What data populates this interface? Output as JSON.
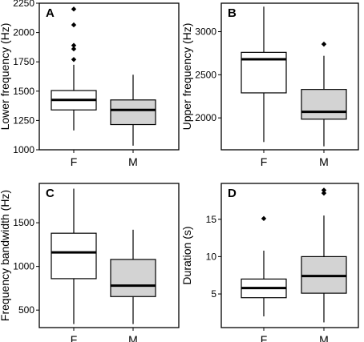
{
  "chart_data": [
    {
      "type": "box",
      "panel": "A",
      "ylabel": "Lower frequency (Hz)",
      "categories": [
        "F",
        "M"
      ],
      "ylim": [
        1000,
        2250
      ],
      "yticks": [
        1000,
        1250,
        1500,
        1750,
        2000,
        2250
      ],
      "boxes": [
        {
          "category": "F",
          "min": 1165,
          "q1": 1340,
          "median": 1425,
          "q3": 1505,
          "max": 1725,
          "outliers": [
            1770,
            1860,
            1890,
            2065,
            2200
          ],
          "fill": "#ffffff"
        },
        {
          "category": "M",
          "min": 1035,
          "q1": 1215,
          "median": 1340,
          "q3": 1425,
          "max": 1640,
          "outliers": [],
          "fill": "#d3d3d3"
        }
      ]
    },
    {
      "type": "box",
      "panel": "B",
      "ylabel": "Upper frequency (Hz)",
      "categories": [
        "F",
        "M"
      ],
      "ylim": [
        1630,
        3330
      ],
      "yticks": [
        2000,
        2500,
        3000
      ],
      "boxes": [
        {
          "category": "F",
          "min": 1720,
          "q1": 2290,
          "median": 2680,
          "q3": 2760,
          "max": 3290,
          "outliers": [],
          "fill": "#ffffff"
        },
        {
          "category": "M",
          "min": 1670,
          "q1": 1985,
          "median": 2070,
          "q3": 2330,
          "max": 2720,
          "outliers": [
            2855
          ],
          "fill": "#d3d3d3"
        }
      ]
    },
    {
      "type": "box",
      "panel": "C",
      "ylabel": "Frequency bandwidth (Hz)",
      "categories": [
        "F",
        "M"
      ],
      "ylim": [
        300,
        1950
      ],
      "yticks": [
        500,
        1000,
        1500
      ],
      "boxes": [
        {
          "category": "F",
          "min": 340,
          "q1": 860,
          "median": 1160,
          "q3": 1380,
          "max": 1890,
          "outliers": [],
          "fill": "#ffffff"
        },
        {
          "category": "M",
          "min": 340,
          "q1": 655,
          "median": 780,
          "q3": 1080,
          "max": 1420,
          "outliers": [],
          "fill": "#d3d3d3"
        }
      ]
    },
    {
      "type": "box",
      "panel": "D",
      "ylabel": "Duration (s)",
      "categories": [
        "F",
        "M"
      ],
      "ylim": [
        0.5,
        19.8
      ],
      "yticks": [
        5,
        10,
        15
      ],
      "boxes": [
        {
          "category": "F",
          "min": 2.0,
          "q1": 4.5,
          "median": 5.8,
          "q3": 7.0,
          "max": 10.8,
          "outliers": [
            15.1
          ],
          "fill": "#ffffff"
        },
        {
          "category": "M",
          "min": 1.2,
          "q1": 5.1,
          "median": 7.4,
          "q3": 10.0,
          "max": 15.5,
          "outliers": [
            18.5,
            18.9
          ],
          "fill": "#d3d3d3"
        }
      ]
    }
  ]
}
